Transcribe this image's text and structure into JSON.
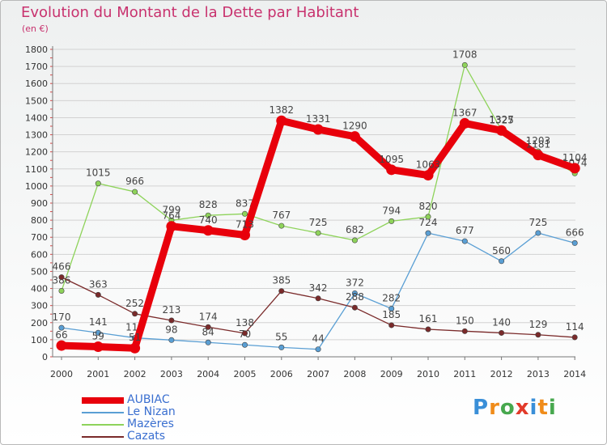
{
  "title": "Evolution du Montant de la Dette par Habitant",
  "unit": "(en €)",
  "logo": {
    "text": "Proxiti",
    "colors": [
      "#3a8fd8",
      "#f08c1a",
      "#47a84e",
      "#e23a2a",
      "#3a8fd8",
      "#f08c1a",
      "#47a84e"
    ]
  },
  "chart_data": {
    "type": "line",
    "title": "Evolution du Montant de la Dette par Habitant",
    "ylabel": "(en €)",
    "xlabel": "",
    "ylim": [
      0,
      1800
    ],
    "yticks": [
      0,
      100,
      200,
      300,
      400,
      500,
      600,
      700,
      800,
      900,
      1000,
      1100,
      1200,
      1300,
      1400,
      1500,
      1600,
      1700,
      1800
    ],
    "categories": [
      "2000",
      "2001",
      "2002",
      "2003",
      "2004",
      "2005",
      "2006",
      "2007",
      "2008",
      "2009",
      "2010",
      "2011",
      "2012",
      "2013",
      "2014"
    ],
    "grid": true,
    "legend_position": "bottom-left",
    "series": [
      {
        "name": "AUBIAC",
        "color": "#e8000b",
        "values": [
          66,
          59,
          51,
          764,
          740,
          713,
          1382,
          1331,
          1290,
          1095,
          1063,
          1367,
          1325,
          1181,
          1104
        ]
      },
      {
        "name": "Le Nizan",
        "color": "#5a9fd4",
        "values": [
          170,
          141,
          111,
          98,
          84,
          70,
          55,
          44,
          372,
          282,
          724,
          677,
          560,
          725,
          666
        ]
      },
      {
        "name": "Mazères",
        "color": "#8ed35a",
        "values": [
          386,
          1015,
          966,
          799,
          828,
          837,
          767,
          725,
          682,
          794,
          820,
          1708,
          1327,
          1203,
          1074
        ]
      },
      {
        "name": "Cazats",
        "color": "#7a2a2a",
        "values": [
          466,
          363,
          252,
          213,
          174,
          138,
          385,
          342,
          288,
          185,
          161,
          150,
          140,
          129,
          114
        ]
      }
    ]
  }
}
